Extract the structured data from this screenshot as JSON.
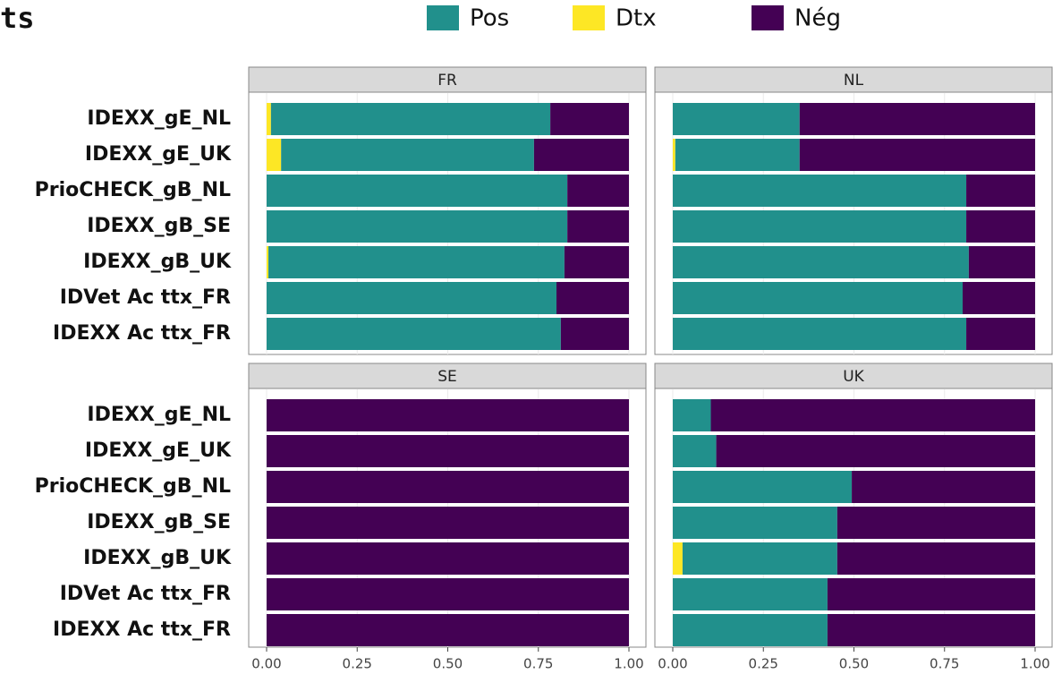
{
  "header": {
    "title": "ts"
  },
  "chart_data": [
    {
      "type": "stacked-bar",
      "title": "FR",
      "categories": [
        "IDEXX_gE_NL",
        "IDEXX_gE_UK",
        "PrioCHECK_gB_NL",
        "IDEXX_gB_SE",
        "IDEXX_gB_UK",
        "IDVet Ac ttx_FR",
        "IDEXX Ac ttx_FR"
      ],
      "series": [
        {
          "name": "Dtx",
          "color": "#fde725",
          "values": [
            0.012,
            0.04,
            0,
            0,
            0.005,
            0,
            0
          ]
        },
        {
          "name": "Pos",
          "color": "#21908c",
          "values": [
            0.771,
            0.698,
            0.83,
            0.83,
            0.817,
            0.8,
            0.812
          ]
        },
        {
          "name": "Nég",
          "color": "#440154",
          "values": [
            0.217,
            0.262,
            0.17,
            0.17,
            0.178,
            0.2,
            0.188
          ]
        }
      ],
      "xlim": [
        0,
        1
      ]
    },
    {
      "type": "stacked-bar",
      "title": "NL",
      "series": [
        {
          "name": "Dtx",
          "color": "#fde725",
          "values": [
            0,
            0.007,
            0,
            0,
            0,
            0,
            0
          ]
        },
        {
          "name": "Pos",
          "color": "#21908c",
          "values": [
            0.35,
            0.343,
            0.81,
            0.81,
            0.817,
            0.8,
            0.81
          ]
        },
        {
          "name": "Nég",
          "color": "#440154",
          "values": [
            0.65,
            0.65,
            0.19,
            0.19,
            0.183,
            0.2,
            0.19
          ]
        }
      ],
      "xlim": [
        0,
        1
      ]
    },
    {
      "type": "stacked-bar",
      "title": "SE",
      "categories": [
        "IDEXX_gE_NL",
        "IDEXX_gE_UK",
        "PrioCHECK_gB_NL",
        "IDEXX_gB_SE",
        "IDEXX_gB_UK",
        "IDVet Ac ttx_FR",
        "IDEXX Ac ttx_FR"
      ],
      "series": [
        {
          "name": "Dtx",
          "color": "#fde725",
          "values": [
            0,
            0,
            0,
            0,
            0,
            0,
            0
          ]
        },
        {
          "name": "Pos",
          "color": "#21908c",
          "values": [
            0,
            0,
            0,
            0,
            0,
            0,
            0
          ]
        },
        {
          "name": "Nég",
          "color": "#440154",
          "values": [
            1,
            1,
            1,
            1,
            1,
            1,
            1
          ]
        }
      ],
      "xlim": [
        0,
        1
      ],
      "xticks": [
        {
          "value": 0,
          "label": "0.00"
        },
        {
          "value": 0.25,
          "label": "0.25"
        },
        {
          "value": 0.5,
          "label": "0.50"
        },
        {
          "value": 0.75,
          "label": "0.75"
        },
        {
          "value": 1,
          "label": "1.00"
        }
      ]
    },
    {
      "type": "stacked-bar",
      "title": "UK",
      "series": [
        {
          "name": "Dtx",
          "color": "#fde725",
          "values": [
            0,
            0,
            0,
            0,
            0.027,
            0,
            0
          ]
        },
        {
          "name": "Pos",
          "color": "#21908c",
          "values": [
            0.105,
            0.12,
            0.494,
            0.454,
            0.427,
            0.427,
            0.427
          ]
        },
        {
          "name": "Nég",
          "color": "#440154",
          "values": [
            0.895,
            0.88,
            0.506,
            0.546,
            0.546,
            0.573,
            0.573
          ]
        }
      ],
      "xlim": [
        0,
        1
      ],
      "xticks": [
        {
          "value": 0,
          "label": "0.00"
        },
        {
          "value": 0.25,
          "label": "0.25"
        },
        {
          "value": 0.5,
          "label": "0.50"
        },
        {
          "value": 0.75,
          "label": "0.75"
        },
        {
          "value": 1,
          "label": "1.00"
        }
      ]
    }
  ]
}
